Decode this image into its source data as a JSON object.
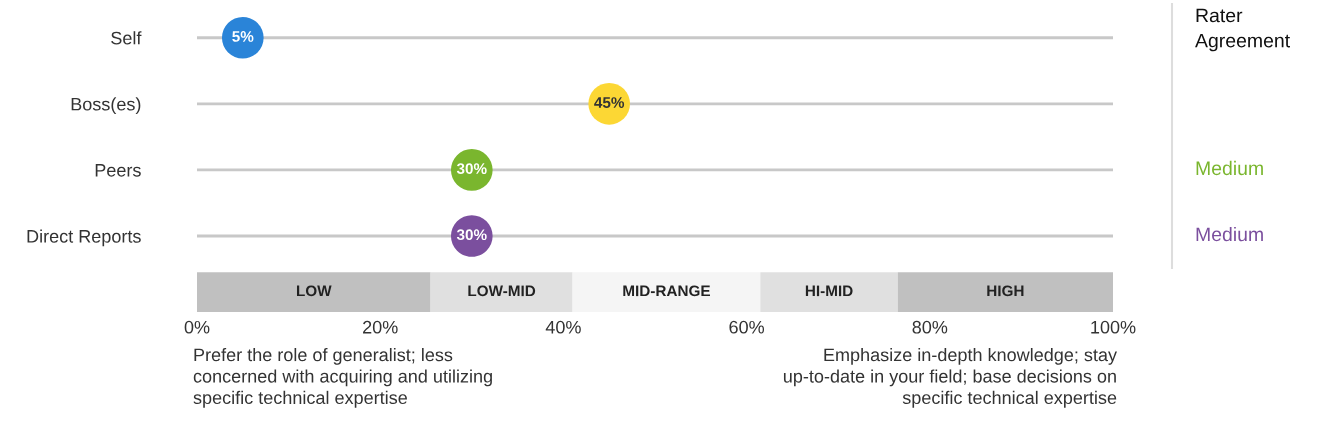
{
  "chart_data": {
    "type": "scatter",
    "orientation": "horizontal",
    "categories": [
      "Self",
      "Boss(es)",
      "Peers",
      "Direct Reports"
    ],
    "values": [
      5,
      45,
      30,
      30
    ],
    "colors": [
      "#2a84d8",
      "#fcd734",
      "#7ab62e",
      "#7b4f9e"
    ],
    "value_labels": [
      "5%",
      "45%",
      "30%",
      "30%"
    ],
    "xlim": [
      0,
      100
    ],
    "xticks": [
      {
        "value": 0,
        "label": "0%"
      },
      {
        "value": 20,
        "label": "20%"
      },
      {
        "value": 40,
        "label": "40%"
      },
      {
        "value": 60,
        "label": "60%"
      },
      {
        "value": 80,
        "label": "80%"
      },
      {
        "value": 100,
        "label": "100%"
      }
    ],
    "grid": "y",
    "bands": [
      {
        "axis": "x",
        "from": 0,
        "to": 25.5,
        "label": "LOW",
        "color": "#c0c0c0"
      },
      {
        "axis": "x",
        "from": 25.5,
        "to": 41,
        "label": "LOW-MID",
        "color": "#e0e0e0"
      },
      {
        "axis": "x",
        "from": 41,
        "to": 61.5,
        "label": "MID-RANGE",
        "color": "#f5f5f5"
      },
      {
        "axis": "x",
        "from": 61.5,
        "to": 76.5,
        "label": "HI-MID",
        "color": "#e0e0e0"
      },
      {
        "axis": "x",
        "from": 76.5,
        "to": 100,
        "label": "HIGH",
        "color": "#c0c0c0"
      }
    ],
    "annotations": [
      "Rater\nAgreement",
      "Prefer the role of generalist; less\nconcerned with acquiring and utilizing\nspecific technical expertise",
      "Emphasize in-depth knowledge; stay\nup-to-date in your field; base decisions on\nspecific technical expertise",
      "Medium",
      "Medium"
    ]
  }
}
